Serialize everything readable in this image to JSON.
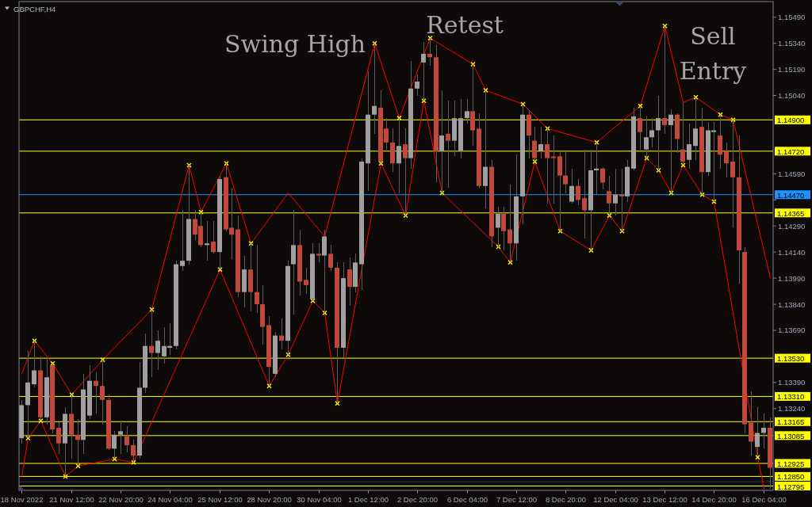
{
  "chart_data": {
    "type": "candlestick",
    "title": "GBPCHF,H4",
    "categories": [
      "18 Nov 2022",
      null,
      null,
      null,
      null,
      null,
      null,
      null,
      "21 Nov 12:00",
      null,
      null,
      null,
      null,
      null,
      null,
      null,
      "22 Nov 20:00",
      null,
      null,
      null,
      null,
      null,
      null,
      null,
      "24 Nov 04:00",
      null,
      null,
      null,
      null,
      null,
      null,
      null,
      "25 Nov 12:00",
      null,
      null,
      null,
      null,
      null,
      null,
      null,
      "28 Nov 20:00",
      null,
      null,
      null,
      null,
      null,
      null,
      null,
      "30 Nov 04:00",
      null,
      null,
      null,
      null,
      null,
      null,
      null,
      "1 Dec 12:00",
      null,
      null,
      null,
      null,
      null,
      null,
      null,
      "2 Dec 20:00",
      null,
      null,
      null,
      null,
      null,
      null,
      null,
      "6 Dec 04:00",
      null,
      null,
      null,
      null,
      null,
      null,
      null,
      "7 Dec 12:00",
      null,
      null,
      null,
      null,
      null,
      null,
      null,
      "8 Dec 20:00",
      null,
      null,
      null,
      null,
      null,
      null,
      null,
      "12 Dec 04:00",
      null,
      null,
      null,
      null,
      null,
      null,
      null,
      "13 Dec 12:00",
      null,
      null,
      null,
      null,
      null,
      null,
      null,
      "14 Dec 20:00",
      null,
      null,
      null,
      null,
      null,
      null,
      null,
      "16 Dec 04:00",
      null
    ],
    "ohlc": [
      [
        1.1307,
        1.1329,
        1.1304,
        1.1326
      ],
      [
        1.1326,
        1.1357,
        1.1307,
        1.1339
      ],
      [
        1.1338,
        1.1363,
        1.1336,
        1.1346
      ],
      [
        1.1346,
        1.1354,
        1.1317,
        1.1319
      ],
      [
        1.1319,
        1.1353,
        1.1315,
        1.1342
      ],
      [
        1.1349,
        1.135,
        1.131,
        1.1312
      ],
      [
        1.1313,
        1.1316,
        1.1298,
        1.1304
      ],
      [
        1.1304,
        1.1325,
        1.1285,
        1.1321
      ],
      [
        1.1321,
        1.1332,
        1.1295,
        1.1309
      ],
      [
        1.1309,
        1.1318,
        1.1291,
        1.1306
      ],
      [
        1.1306,
        1.1344,
        1.1298,
        1.1335
      ],
      [
        1.132,
        1.1349,
        1.1318,
        1.134
      ],
      [
        1.134,
        1.1345,
        1.1321,
        1.1337
      ],
      [
        1.1337,
        1.1352,
        1.1315,
        1.1329
      ],
      [
        1.1329,
        1.1332,
        1.13,
        1.1301
      ],
      [
        1.1301,
        1.1311,
        1.1295,
        1.1309
      ],
      [
        1.1309,
        1.1317,
        1.1298,
        1.1311
      ],
      [
        1.1308,
        1.1314,
        1.1299,
        1.1303
      ],
      [
        1.1303,
        1.1306,
        1.1293,
        1.1297
      ],
      [
        1.1297,
        1.1351,
        1.1295,
        1.1336
      ],
      [
        1.1336,
        1.1367,
        1.1333,
        1.136
      ],
      [
        1.136,
        1.1381,
        1.1342,
        1.1356
      ],
      [
        1.1356,
        1.1369,
        1.1346,
        1.1363
      ],
      [
        1.1354,
        1.1371,
        1.135,
        1.136
      ],
      [
        1.1359,
        1.1373,
        1.1355,
        1.136
      ],
      [
        1.136,
        1.1409,
        1.1358,
        1.1407
      ],
      [
        1.1406,
        1.1438,
        1.1403,
        1.1409
      ],
      [
        1.1409,
        1.1464,
        1.1407,
        1.1433
      ],
      [
        1.1433,
        1.1438,
        1.1421,
        1.1424
      ],
      [
        1.1429,
        1.1437,
        1.1417,
        1.1418
      ],
      [
        1.1418,
        1.1432,
        1.1409,
        1.1419
      ],
      [
        1.142,
        1.1432,
        1.1413,
        1.1414
      ],
      [
        1.1414,
        1.1458,
        1.1404,
        1.1456
      ],
      [
        1.1457,
        1.1465,
        1.1426,
        1.1427
      ],
      [
        1.1428,
        1.1451,
        1.141,
        1.1424
      ],
      [
        1.1427,
        1.1435,
        1.1388,
        1.1391
      ],
      [
        1.1391,
        1.1412,
        1.1382,
        1.1404
      ],
      [
        1.1404,
        1.1419,
        1.138,
        1.1391
      ],
      [
        1.1391,
        1.1418,
        1.1379,
        1.1384
      ],
      [
        1.1384,
        1.1395,
        1.1361,
        1.1371
      ],
      [
        1.1372,
        1.1377,
        1.1337,
        1.1348
      ],
      [
        1.1344,
        1.1368,
        1.1342,
        1.1366
      ],
      [
        1.1366,
        1.1376,
        1.1358,
        1.1363
      ],
      [
        1.1363,
        1.1409,
        1.1355,
        1.1406
      ],
      [
        1.1407,
        1.1438,
        1.1378,
        1.1418
      ],
      [
        1.1418,
        1.1427,
        1.1389,
        1.1397
      ],
      [
        1.1398,
        1.1405,
        1.139,
        1.1395
      ],
      [
        1.1387,
        1.1419,
        1.1386,
        1.1413
      ],
      [
        1.1413,
        1.1419,
        1.1408,
        1.1412
      ],
      [
        1.1412,
        1.1427,
        1.1379,
        1.1423
      ],
      [
        1.1413,
        1.1418,
        1.1403,
        1.1405
      ],
      [
        1.1405,
        1.1408,
        1.1327,
        1.1359
      ],
      [
        1.1359,
        1.1408,
        1.1353,
        1.1399
      ],
      [
        1.1404,
        1.1411,
        1.1383,
        1.1394
      ],
      [
        1.1394,
        1.1413,
        1.1391,
        1.1408
      ],
      [
        1.1407,
        1.1468,
        1.1392,
        1.1466
      ],
      [
        1.1465,
        1.1518,
        1.1449,
        1.1493
      ],
      [
        1.1493,
        1.1534,
        1.1482,
        1.1498
      ],
      [
        1.1497,
        1.1507,
        1.1465,
        1.1466
      ],
      [
        1.1485,
        1.1491,
        1.1473,
        1.1477
      ],
      [
        1.1477,
        1.1485,
        1.146,
        1.1465
      ],
      [
        1.1465,
        1.1491,
        1.1448,
        1.1475
      ],
      [
        1.1476,
        1.1485,
        1.1435,
        1.1468
      ],
      [
        1.1468,
        1.1524,
        1.1462,
        1.1508
      ],
      [
        1.1508,
        1.1516,
        1.1504,
        1.1512
      ],
      [
        1.1523,
        1.1535,
        1.1501,
        1.1528
      ],
      [
        1.1528,
        1.1537,
        1.1521,
        1.1526
      ],
      [
        1.1526,
        1.1533,
        1.1454,
        1.1472
      ],
      [
        1.1472,
        1.1507,
        1.1448,
        1.1481
      ],
      [
        1.1482,
        1.1501,
        1.1451,
        1.1478
      ],
      [
        1.1478,
        1.1501,
        1.1469,
        1.1491
      ],
      [
        1.1472,
        1.1502,
        1.1468,
        1.1491
      ],
      [
        1.1491,
        1.1502,
        1.1488,
        1.1495
      ],
      [
        1.1495,
        1.1522,
        1.1475,
        1.1484
      ],
      [
        1.1485,
        1.1494,
        1.1451,
        1.1452
      ],
      [
        1.1452,
        1.1507,
        1.1439,
        1.1463
      ],
      [
        1.1463,
        1.1467,
        1.1417,
        1.1423
      ],
      [
        1.1428,
        1.144,
        1.1417,
        1.1436
      ],
      [
        1.1436,
        1.144,
        1.1415,
        1.1426
      ],
      [
        1.1427,
        1.1453,
        1.1408,
        1.1419
      ],
      [
        1.1419,
        1.147,
        1.1409,
        1.1446
      ],
      [
        1.1446,
        1.1499,
        1.143,
        1.1493
      ],
      [
        1.1493,
        1.1495,
        1.1468,
        1.1481
      ],
      [
        1.1478,
        1.1486,
        1.1466,
        1.1468
      ],
      [
        1.1472,
        1.1486,
        1.1468,
        1.1476
      ],
      [
        1.1476,
        1.1485,
        1.1442,
        1.1468
      ],
      [
        1.1469,
        1.1481,
        1.1442,
        1.1468
      ],
      [
        1.1469,
        1.1473,
        1.1426,
        1.1458
      ],
      [
        1.1458,
        1.1472,
        1.1448,
        1.1453
      ],
      [
        1.1443,
        1.1462,
        1.1442,
        1.1452
      ],
      [
        1.1452,
        1.1456,
        1.1441,
        1.1444
      ],
      [
        1.1445,
        1.1473,
        1.1422,
        1.1438
      ],
      [
        1.1438,
        1.1473,
        1.1415,
        1.1461
      ],
      [
        1.1461,
        1.1477,
        1.1447,
        1.1462
      ],
      [
        1.1462,
        1.1463,
        1.145,
        1.1454
      ],
      [
        1.1449,
        1.1458,
        1.1435,
        1.1442
      ],
      [
        1.1442,
        1.1462,
        1.1435,
        1.1447
      ],
      [
        1.1447,
        1.1462,
        1.1426,
        1.1446
      ],
      [
        1.1446,
        1.1467,
        1.1443,
        1.1463
      ],
      [
        1.1462,
        1.1497,
        1.1461,
        1.1492
      ],
      [
        1.1491,
        1.1498,
        1.1473,
        1.1483
      ],
      [
        1.1473,
        1.1492,
        1.1468,
        1.148
      ],
      [
        1.148,
        1.1491,
        1.1474,
        1.1484
      ],
      [
        1.1484,
        1.1504,
        1.1461,
        1.1491
      ],
      [
        1.1491,
        1.1544,
        1.1482,
        1.1487
      ],
      [
        1.1487,
        1.1496,
        1.1448,
        1.1493
      ],
      [
        1.1493,
        1.1494,
        1.1471,
        1.1479
      ],
      [
        1.1473,
        1.15,
        1.1464,
        1.1466
      ],
      [
        1.1467,
        1.1488,
        1.1462,
        1.1476
      ],
      [
        1.1475,
        1.1503,
        1.1467,
        1.1485
      ],
      [
        1.1486,
        1.1497,
        1.1447,
        1.146
      ],
      [
        1.146,
        1.1489,
        1.1458,
        1.1484
      ],
      [
        1.1483,
        1.1489,
        1.1443,
        1.1484
      ],
      [
        1.1481,
        1.1493,
        1.1462,
        1.147
      ],
      [
        1.1472,
        1.1477,
        1.1457,
        1.1465
      ],
      [
        1.1466,
        1.149,
        1.1428,
        1.1457
      ],
      [
        1.1457,
        1.1481,
        1.1396,
        1.1415
      ],
      [
        1.1414,
        1.1417,
        1.131,
        1.1315
      ],
      [
        1.1316,
        1.1334,
        1.1297,
        1.1305
      ],
      [
        1.1302,
        1.1325,
        1.1297,
        1.131
      ],
      [
        1.131,
        1.1321,
        1.1301,
        1.1313
      ],
      [
        1.1313,
        1.1319,
        1.1278,
        1.129
      ]
    ],
    "colors": [
      "#a0a0a0",
      "#a0a0a0",
      "#a0a0a0",
      "#c1483a",
      "#a0a0a0",
      "#c1483a",
      "#c1483a",
      "#a0a0a0",
      "#c1483a",
      "#c1483a",
      "#a0a0a0",
      "#a0a0a0",
      "#c1483a",
      "#c1483a",
      "#c1483a",
      "#a0a0a0",
      "#a0a0a0",
      "#c1483a",
      "#c1483a",
      "#a0a0a0",
      "#a0a0a0",
      "#c1483a",
      "#a0a0a0",
      "#a0a0a0",
      "#a0a0a0",
      "#a0a0a0",
      "#a0a0a0",
      "#a0a0a0",
      "#c1483a",
      "#c1483a",
      "#a0a0a0",
      "#c1483a",
      "#a0a0a0",
      "#c1483a",
      "#c1483a",
      "#c1483a",
      "#a0a0a0",
      "#c1483a",
      "#c1483a",
      "#c1483a",
      "#c1483a",
      "#a0a0a0",
      "#c1483a",
      "#a0a0a0",
      "#a0a0a0",
      "#c1483a",
      "#c1483a",
      "#a0a0a0",
      "#c1483a",
      "#a0a0a0",
      "#c1483a",
      "#c1483a",
      "#a0a0a0",
      "#c1483a",
      "#a0a0a0",
      "#a0a0a0",
      "#a0a0a0",
      "#a0a0a0",
      "#c1483a",
      "#c1483a",
      "#c1483a",
      "#a0a0a0",
      "#c1483a",
      "#a0a0a0",
      "#a0a0a0",
      "#a0a0a0",
      "#c1483a",
      "#c1483a",
      "#a0a0a0",
      "#c1483a",
      "#a0a0a0",
      "#a0a0a0",
      "#a0a0a0",
      "#c1483a",
      "#c1483a",
      "#a0a0a0",
      "#c1483a",
      "#a0a0a0",
      "#c1483a",
      "#c1483a",
      "#a0a0a0",
      "#a0a0a0",
      "#c1483a",
      "#c1483a",
      "#a0a0a0",
      "#c1483a",
      "#c1483a",
      "#c1483a",
      "#c1483a",
      "#a0a0a0",
      "#c1483a",
      "#c1483a",
      "#a0a0a0",
      "#a0a0a0",
      "#c1483a",
      "#c1483a",
      "#a0a0a0",
      "#c1483a",
      "#a0a0a0",
      "#a0a0a0",
      "#c1483a",
      "#a0a0a0",
      "#a0a0a0",
      "#a0a0a0",
      "#c1483a",
      "#a0a0a0",
      "#c1483a",
      "#c1483a",
      "#a0a0a0",
      "#a0a0a0",
      "#c1483a",
      "#a0a0a0",
      "#a0a0a0",
      "#c1483a",
      "#c1483a",
      "#c1483a",
      "#c1483a",
      "#c1483a",
      "#c1483a",
      "#a0a0a0",
      "#a0a0a0",
      "#c1483a"
    ],
    "series": [
      {
        "type": "line",
        "color": "#ff0000",
        "values": [
          1.1344,
          null,
          1.1363,
          null,
          null,
          1.135,
          null,
          null,
          1.1332,
          null,
          null,
          null,
          null,
          1.1352,
          null,
          null,
          null,
          null,
          null,
          null,
          null,
          1.1381,
          null,
          null,
          null,
          null,
          null,
          1.1464,
          null,
          1.1437,
          null,
          null,
          null,
          1.1465,
          null,
          null,
          null,
          1.1419,
          null,
          null,
          null,
          null,
          null,
          1.1448,
          null,
          null,
          null,
          null,
          null,
          1.1423,
          null,
          null,
          null,
          null,
          null,
          null,
          null,
          1.1534,
          null,
          null,
          null,
          1.1491,
          null,
          null,
          null,
          null,
          1.1537,
          null,
          null,
          null,
          null,
          null,
          null,
          1.1522,
          null,
          1.1507,
          null,
          null,
          null,
          null,
          null,
          1.1499,
          null,
          null,
          null,
          1.1485,
          null,
          null,
          null,
          null,
          null,
          null,
          null,
          1.1477,
          null,
          null,
          null,
          null,
          null,
          null,
          1.1498,
          null,
          null,
          null,
          1.1544,
          null,
          null,
          1.15,
          null,
          1.1503,
          null,
          null,
          null,
          1.1493,
          null,
          1.149,
          null,
          null,
          null,
          null,
          null,
          1.1399
        ]
      },
      {
        "type": "line",
        "color": "#ff0000",
        "values": [
          1.1285,
          1.1307,
          null,
          1.1317,
          null,
          null,
          null,
          1.1285,
          null,
          1.1291,
          null,
          null,
          null,
          null,
          null,
          1.1295,
          null,
          null,
          1.1293,
          null,
          null,
          null,
          null,
          null,
          null,
          null,
          null,
          null,
          null,
          null,
          null,
          null,
          1.1404,
          null,
          null,
          null,
          null,
          null,
          null,
          null,
          1.1337,
          null,
          null,
          1.1355,
          null,
          null,
          null,
          1.1386,
          null,
          1.1379,
          null,
          1.1327,
          null,
          null,
          null,
          null,
          null,
          null,
          1.1465,
          null,
          null,
          null,
          1.1435,
          null,
          null,
          1.1501,
          null,
          null,
          1.1448,
          null,
          null,
          null,
          null,
          null,
          null,
          null,
          null,
          1.1417,
          null,
          1.1408,
          null,
          null,
          null,
          1.1466,
          null,
          null,
          null,
          1.1426,
          null,
          null,
          null,
          null,
          1.1415,
          null,
          null,
          1.1435,
          null,
          1.1426,
          null,
          null,
          null,
          1.1468,
          null,
          1.1461,
          null,
          1.1448,
          null,
          1.1464,
          null,
          null,
          1.1447,
          null,
          1.1443,
          null,
          null,
          null,
          null,
          null,
          null,
          1.1296,
          1.1278,
          null
        ]
      },
      {
        "type": "scatter",
        "color": "#ffff00",
        "marker": "cross",
        "values": [
          null,
          1.1307,
          1.1363,
          1.1317,
          null,
          1.135,
          null,
          1.1285,
          1.1332,
          1.1291,
          null,
          null,
          null,
          1.1352,
          null,
          1.1295,
          null,
          null,
          1.1293,
          null,
          null,
          1.1381,
          null,
          null,
          null,
          null,
          null,
          1.1464,
          null,
          1.1437,
          null,
          null,
          1.1404,
          1.1465,
          null,
          null,
          null,
          1.1419,
          null,
          null,
          1.1337,
          null,
          null,
          1.1355,
          null,
          null,
          null,
          1.1386,
          null,
          1.1379,
          null,
          1.1327,
          null,
          null,
          null,
          null,
          null,
          1.1534,
          1.1465,
          null,
          null,
          1.1491,
          1.1435,
          null,
          null,
          1.1501,
          1.1537,
          null,
          1.1448,
          null,
          null,
          null,
          null,
          1.1522,
          null,
          1.1507,
          null,
          1.1417,
          null,
          1.1408,
          null,
          1.1499,
          null,
          1.1466,
          null,
          1.1485,
          null,
          1.1426,
          null,
          null,
          null,
          null,
          1.1415,
          1.1477,
          null,
          1.1435,
          null,
          1.1426,
          null,
          null,
          1.1498,
          1.1468,
          null,
          1.1461,
          1.1544,
          1.1448,
          null,
          1.1464,
          null,
          1.1503,
          1.1447,
          null,
          1.1443,
          1.1493,
          null,
          1.149,
          null,
          null,
          null,
          1.1296,
          null,
          null
        ]
      }
    ],
    "ylim": [
      1.1277,
      1.1558
    ],
    "yticks": [
      {
        "value": 1.1549,
        "label": "1.15490"
      },
      {
        "value": 1.1534,
        "label": "1.15340"
      },
      {
        "value": 1.1519,
        "label": "1.15190"
      },
      {
        "value": 1.1504,
        "label": "1.15040"
      },
      {
        "value": 1.1459,
        "label": "1.14590"
      },
      {
        "value": 1.1444,
        "label": null
      },
      {
        "value": 1.1429,
        "label": "1.14290"
      },
      {
        "value": 1.1414,
        "label": "1.14140"
      },
      {
        "value": 1.1399,
        "label": "1.13990"
      },
      {
        "value": 1.1384,
        "label": "1.13840"
      },
      {
        "value": 1.1369,
        "label": "1.13690"
      },
      {
        "value": 1.1339,
        "label": "1.13390"
      },
      {
        "value": 1.1324,
        "label": "1.13240"
      }
    ],
    "ref_lines": [
      {
        "axis": "y",
        "value": 1.149,
        "label": "1.14900",
        "color": "#ffff00"
      },
      {
        "axis": "y",
        "value": 1.1472,
        "label": "1.14720",
        "color": "#ffff00"
      },
      {
        "axis": "y",
        "value": 1.1447,
        "label": "1.14470",
        "color": "#1e90ff"
      },
      {
        "axis": "y",
        "value": 1.14365,
        "label": "1.14365",
        "color": "#ffff00"
      },
      {
        "axis": "y",
        "value": 1.1353,
        "label": "1.13530",
        "color": "#ffff00"
      },
      {
        "axis": "y",
        "value": 1.1331,
        "label": "1.13310",
        "color": "#ffff00"
      },
      {
        "axis": "y",
        "value": 1.13165,
        "label": "1.13165",
        "color": "#ffff00"
      },
      {
        "axis": "y",
        "value": 1.13085,
        "label": "1.13085",
        "color": "#ffff00"
      },
      {
        "axis": "y",
        "value": 1.12925,
        "label": "1.12925",
        "color": "#ffff00"
      },
      {
        "axis": "y",
        "value": 1.1285,
        "label": "1.12850",
        "color": "#ffff00"
      },
      {
        "axis": "y",
        "value": 1.1282,
        "color": "#2c3454"
      },
      {
        "axis": "y",
        "value": 1.12795,
        "label": "1.12795",
        "color": "#ffff00"
      }
    ],
    "annotations": [
      "Swing High",
      "Retest",
      "Sell\nEntry"
    ]
  }
}
